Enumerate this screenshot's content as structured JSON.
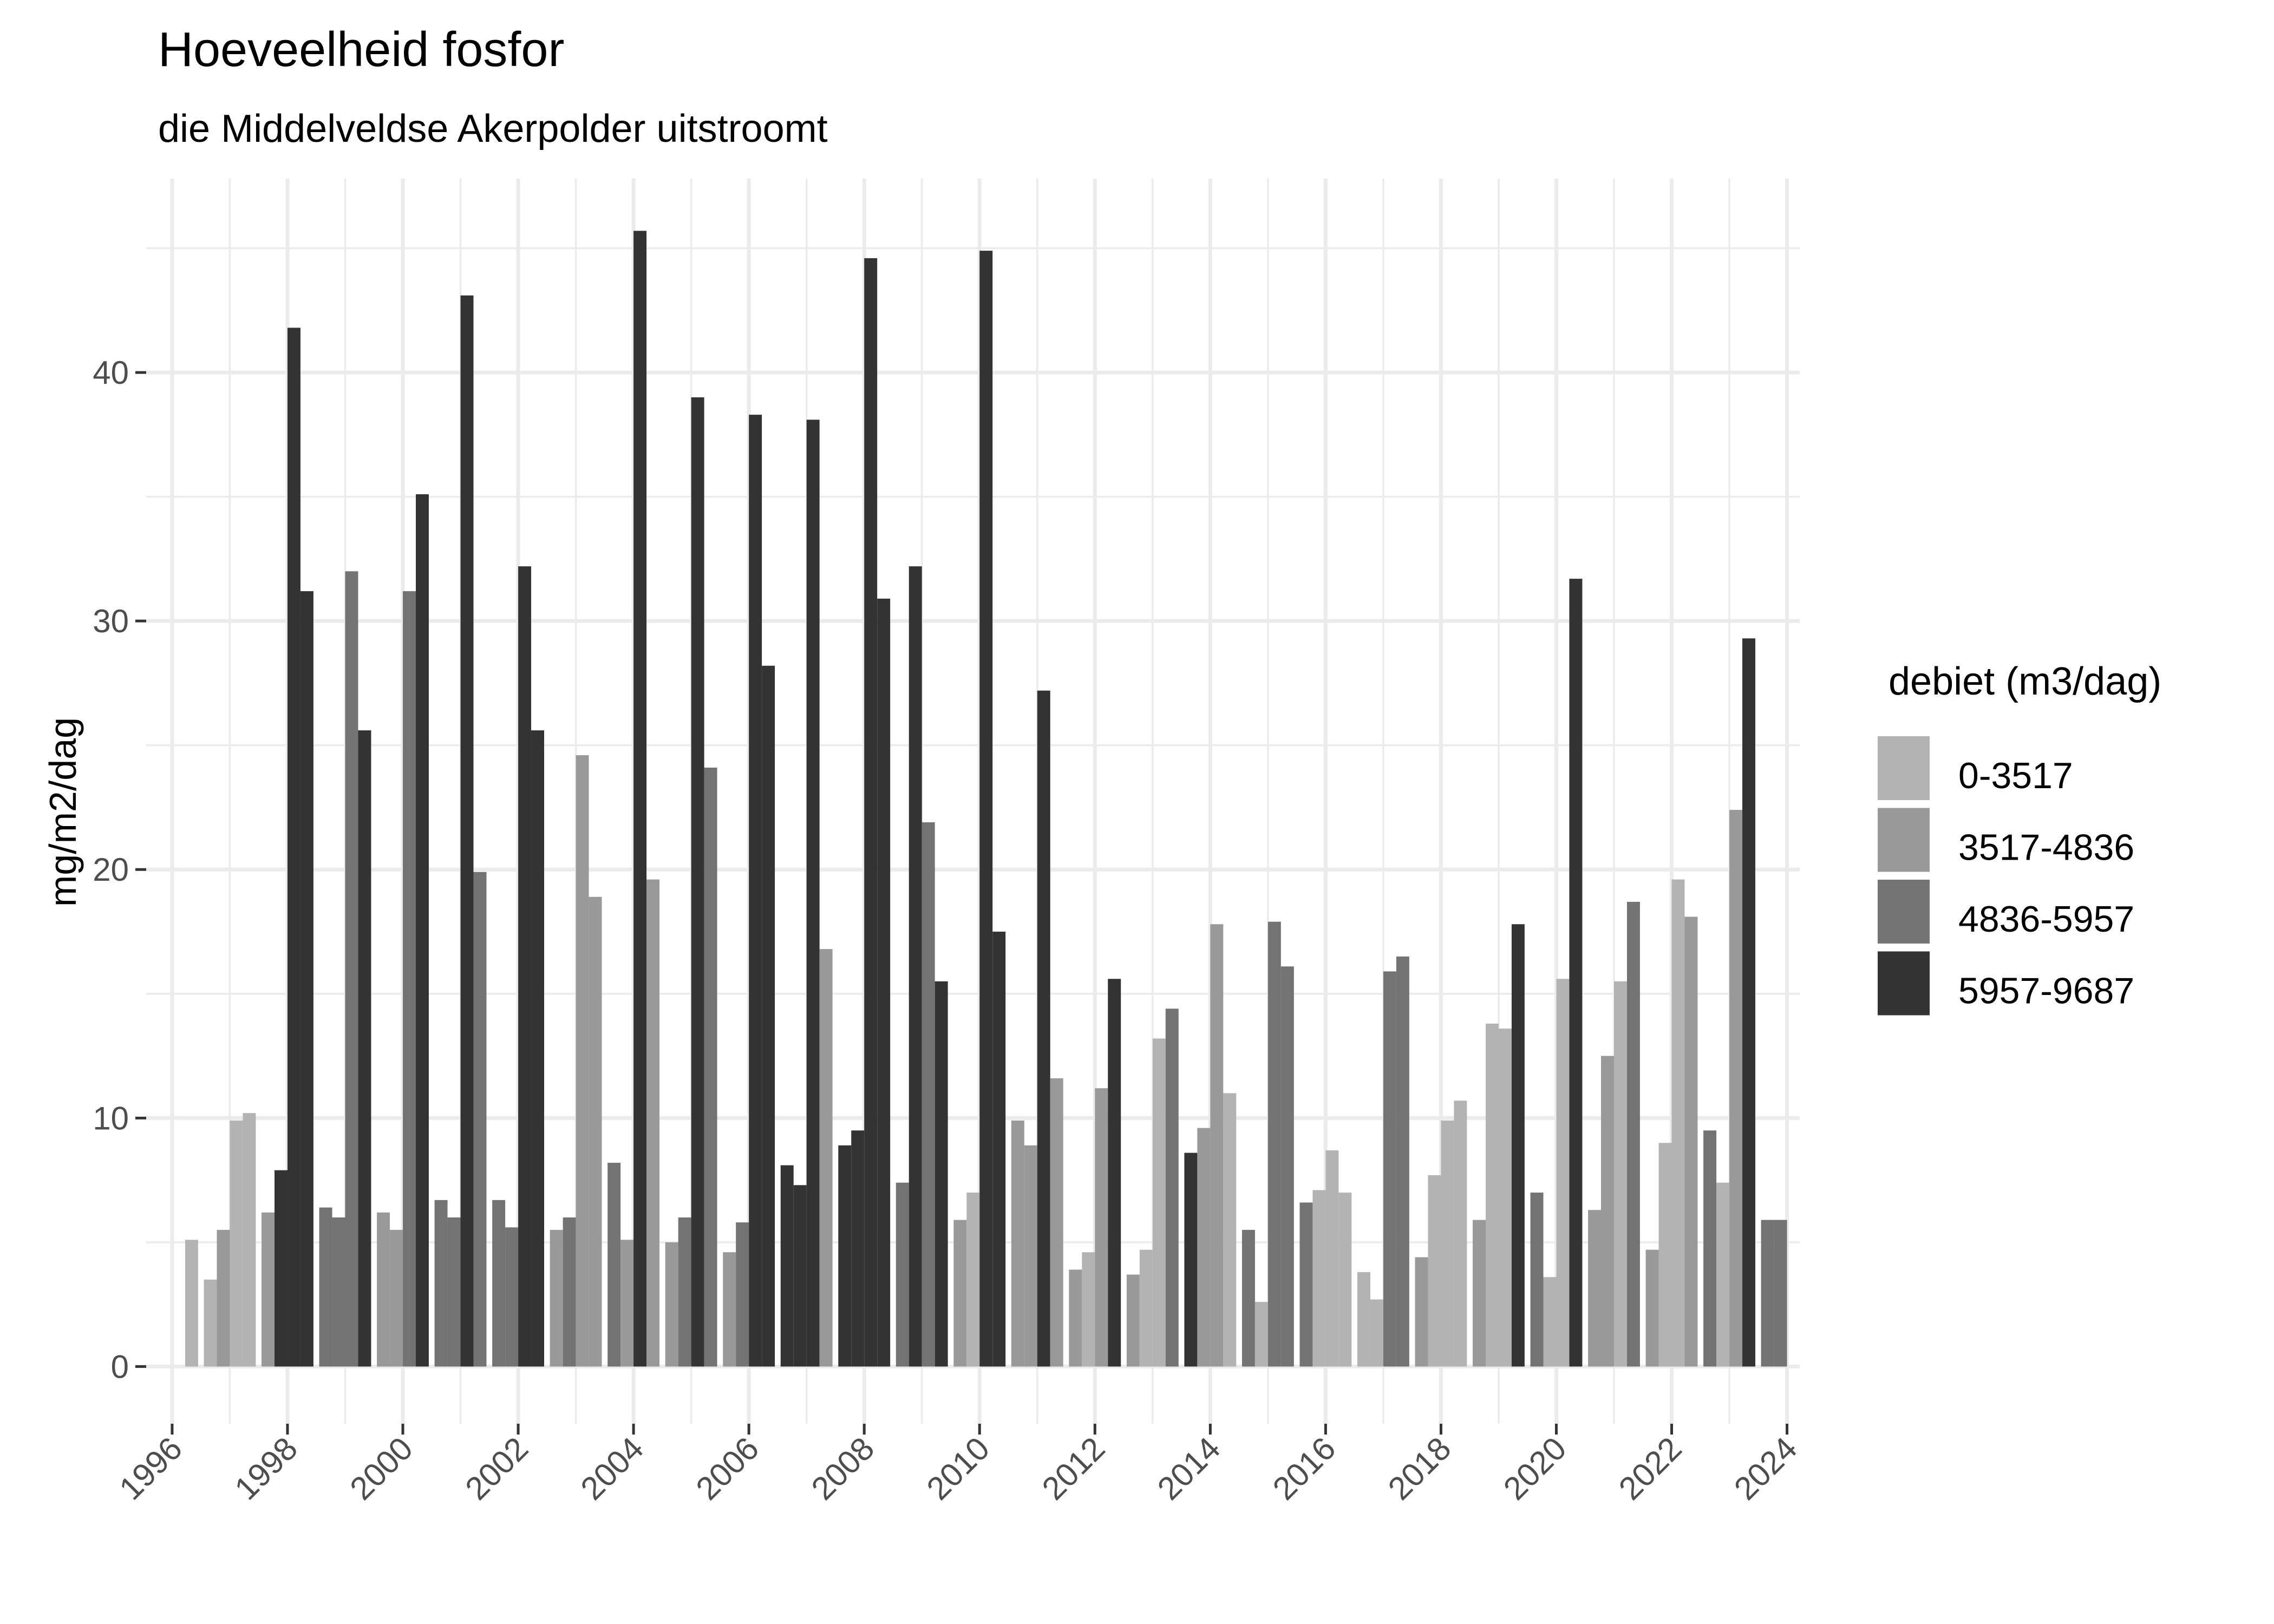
{
  "chart_data": {
    "type": "bar",
    "title": "Hoeveelheid fosfor",
    "subtitle": "die Middelveldse Akerpolder uitstroomt",
    "xlabel": "",
    "ylabel": "mg/m2/dag",
    "xlim": [
      1995.55,
      2024.22
    ],
    "ylim": [
      -2.3,
      47.8
    ],
    "x_ticks": [
      1996,
      1998,
      2000,
      2002,
      2004,
      2006,
      2008,
      2010,
      2012,
      2014,
      2016,
      2018,
      2020,
      2022,
      2024
    ],
    "y_ticks": [
      0,
      10,
      20,
      30,
      40
    ],
    "grid": true,
    "legend": {
      "title": "debiet (m3/dag)",
      "placement": "right",
      "entries": [
        {
          "label": "0-3517",
          "color": "#b3b3b3"
        },
        {
          "label": "3517-4836",
          "color": "#999999"
        },
        {
          "label": "4836-5957",
          "color": "#737373"
        },
        {
          "label": "5957-9687",
          "color": "#333333"
        }
      ]
    },
    "bars": [
      {
        "x": 1996,
        "q": 4,
        "y": 5.1,
        "c": 0
      },
      {
        "x": 1997,
        "q": 1,
        "y": 3.5,
        "c": 0
      },
      {
        "x": 1997,
        "q": 2,
        "y": 5.5,
        "c": 1
      },
      {
        "x": 1997,
        "q": 3,
        "y": 9.9,
        "c": 0
      },
      {
        "x": 1997,
        "q": 4,
        "y": 10.2,
        "c": 0
      },
      {
        "x": 1998,
        "q": 1,
        "y": 6.2,
        "c": 1
      },
      {
        "x": 1998,
        "q": 2,
        "y": 7.9,
        "c": 3
      },
      {
        "x": 1998,
        "q": 3,
        "y": 41.8,
        "c": 3
      },
      {
        "x": 1998,
        "q": 4,
        "y": 31.2,
        "c": 3
      },
      {
        "x": 1999,
        "q": 1,
        "y": 6.4,
        "c": 2
      },
      {
        "x": 1999,
        "q": 2,
        "y": 6.0,
        "c": 2
      },
      {
        "x": 1999,
        "q": 3,
        "y": 32.0,
        "c": 2
      },
      {
        "x": 1999,
        "q": 4,
        "y": 25.6,
        "c": 3
      },
      {
        "x": 2000,
        "q": 1,
        "y": 6.2,
        "c": 1
      },
      {
        "x": 2000,
        "q": 2,
        "y": 5.5,
        "c": 1
      },
      {
        "x": 2000,
        "q": 3,
        "y": 31.2,
        "c": 2
      },
      {
        "x": 2000,
        "q": 4,
        "y": 35.1,
        "c": 3
      },
      {
        "x": 2001,
        "q": 1,
        "y": 6.7,
        "c": 2
      },
      {
        "x": 2001,
        "q": 2,
        "y": 6.0,
        "c": 2
      },
      {
        "x": 2001,
        "q": 3,
        "y": 43.1,
        "c": 3
      },
      {
        "x": 2001,
        "q": 4,
        "y": 19.9,
        "c": 2
      },
      {
        "x": 2002,
        "q": 1,
        "y": 6.7,
        "c": 2
      },
      {
        "x": 2002,
        "q": 2,
        "y": 5.6,
        "c": 2
      },
      {
        "x": 2002,
        "q": 3,
        "y": 32.2,
        "c": 3
      },
      {
        "x": 2002,
        "q": 4,
        "y": 25.6,
        "c": 3
      },
      {
        "x": 2003,
        "q": 1,
        "y": 5.5,
        "c": 1
      },
      {
        "x": 2003,
        "q": 2,
        "y": 6.0,
        "c": 2
      },
      {
        "x": 2003,
        "q": 3,
        "y": 24.6,
        "c": 1
      },
      {
        "x": 2003,
        "q": 4,
        "y": 18.9,
        "c": 1
      },
      {
        "x": 2004,
        "q": 1,
        "y": 8.2,
        "c": 2
      },
      {
        "x": 2004,
        "q": 2,
        "y": 5.1,
        "c": 1
      },
      {
        "x": 2004,
        "q": 3,
        "y": 45.7,
        "c": 3
      },
      {
        "x": 2004,
        "q": 4,
        "y": 19.6,
        "c": 1
      },
      {
        "x": 2005,
        "q": 1,
        "y": 5.0,
        "c": 1
      },
      {
        "x": 2005,
        "q": 2,
        "y": 6.0,
        "c": 2
      },
      {
        "x": 2005,
        "q": 3,
        "y": 39.0,
        "c": 3
      },
      {
        "x": 2005,
        "q": 4,
        "y": 24.1,
        "c": 2
      },
      {
        "x": 2006,
        "q": 1,
        "y": 4.6,
        "c": 1
      },
      {
        "x": 2006,
        "q": 2,
        "y": 5.8,
        "c": 2
      },
      {
        "x": 2006,
        "q": 3,
        "y": 38.3,
        "c": 3
      },
      {
        "x": 2006,
        "q": 4,
        "y": 28.2,
        "c": 3
      },
      {
        "x": 2007,
        "q": 1,
        "y": 8.1,
        "c": 3
      },
      {
        "x": 2007,
        "q": 2,
        "y": 7.3,
        "c": 3
      },
      {
        "x": 2007,
        "q": 3,
        "y": 38.1,
        "c": 3
      },
      {
        "x": 2007,
        "q": 4,
        "y": 16.8,
        "c": 1
      },
      {
        "x": 2008,
        "q": 1,
        "y": 8.9,
        "c": 3
      },
      {
        "x": 2008,
        "q": 2,
        "y": 9.5,
        "c": 3
      },
      {
        "x": 2008,
        "q": 3,
        "y": 44.6,
        "c": 3
      },
      {
        "x": 2008,
        "q": 4,
        "y": 30.9,
        "c": 3
      },
      {
        "x": 2009,
        "q": 1,
        "y": 7.4,
        "c": 2
      },
      {
        "x": 2009,
        "q": 2,
        "y": 32.2,
        "c": 3
      },
      {
        "x": 2009,
        "q": 3,
        "y": 21.9,
        "c": 2
      },
      {
        "x": 2009,
        "q": 4,
        "y": 15.5,
        "c": 3
      },
      {
        "x": 2010,
        "q": 1,
        "y": 5.9,
        "c": 1
      },
      {
        "x": 2010,
        "q": 2,
        "y": 7.0,
        "c": 0
      },
      {
        "x": 2010,
        "q": 3,
        "y": 44.9,
        "c": 3
      },
      {
        "x": 2010,
        "q": 4,
        "y": 17.5,
        "c": 3
      },
      {
        "x": 2011,
        "q": 1,
        "y": 9.9,
        "c": 1
      },
      {
        "x": 2011,
        "q": 2,
        "y": 8.9,
        "c": 1
      },
      {
        "x": 2011,
        "q": 3,
        "y": 27.2,
        "c": 3
      },
      {
        "x": 2011,
        "q": 4,
        "y": 11.6,
        "c": 1
      },
      {
        "x": 2012,
        "q": 1,
        "y": 3.9,
        "c": 1
      },
      {
        "x": 2012,
        "q": 2,
        "y": 4.6,
        "c": 0
      },
      {
        "x": 2012,
        "q": 3,
        "y": 11.2,
        "c": 1
      },
      {
        "x": 2012,
        "q": 4,
        "y": 15.6,
        "c": 3
      },
      {
        "x": 2013,
        "q": 1,
        "y": 3.7,
        "c": 1
      },
      {
        "x": 2013,
        "q": 2,
        "y": 4.7,
        "c": 0
      },
      {
        "x": 2013,
        "q": 3,
        "y": 13.2,
        "c": 0
      },
      {
        "x": 2013,
        "q": 4,
        "y": 14.4,
        "c": 2
      },
      {
        "x": 2014,
        "q": 1,
        "y": 8.6,
        "c": 3
      },
      {
        "x": 2014,
        "q": 2,
        "y": 9.6,
        "c": 1
      },
      {
        "x": 2014,
        "q": 3,
        "y": 17.8,
        "c": 1
      },
      {
        "x": 2014,
        "q": 4,
        "y": 11.0,
        "c": 0
      },
      {
        "x": 2015,
        "q": 1,
        "y": 5.5,
        "c": 2
      },
      {
        "x": 2015,
        "q": 2,
        "y": 2.6,
        "c": 0
      },
      {
        "x": 2015,
        "q": 3,
        "y": 17.9,
        "c": 2
      },
      {
        "x": 2015,
        "q": 4,
        "y": 16.1,
        "c": 2
      },
      {
        "x": 2016,
        "q": 1,
        "y": 6.6,
        "c": 2
      },
      {
        "x": 2016,
        "q": 2,
        "y": 7.1,
        "c": 0
      },
      {
        "x": 2016,
        "q": 3,
        "y": 8.7,
        "c": 0
      },
      {
        "x": 2016,
        "q": 4,
        "y": 7.0,
        "c": 0
      },
      {
        "x": 2017,
        "q": 1,
        "y": 3.8,
        "c": 0
      },
      {
        "x": 2017,
        "q": 2,
        "y": 2.7,
        "c": 0
      },
      {
        "x": 2017,
        "q": 3,
        "y": 15.9,
        "c": 2
      },
      {
        "x": 2017,
        "q": 4,
        "y": 16.5,
        "c": 2
      },
      {
        "x": 2018,
        "q": 1,
        "y": 4.4,
        "c": 1
      },
      {
        "x": 2018,
        "q": 2,
        "y": 7.7,
        "c": 0
      },
      {
        "x": 2018,
        "q": 3,
        "y": 9.9,
        "c": 0
      },
      {
        "x": 2018,
        "q": 4,
        "y": 10.7,
        "c": 0
      },
      {
        "x": 2019,
        "q": 1,
        "y": 5.9,
        "c": 1
      },
      {
        "x": 2019,
        "q": 2,
        "y": 13.8,
        "c": 0
      },
      {
        "x": 2019,
        "q": 3,
        "y": 13.6,
        "c": 0
      },
      {
        "x": 2019,
        "q": 4,
        "y": 17.8,
        "c": 3
      },
      {
        "x": 2020,
        "q": 1,
        "y": 7.0,
        "c": 2
      },
      {
        "x": 2020,
        "q": 2,
        "y": 3.6,
        "c": 0
      },
      {
        "x": 2020,
        "q": 3,
        "y": 15.6,
        "c": 0
      },
      {
        "x": 2020,
        "q": 4,
        "y": 31.7,
        "c": 3
      },
      {
        "x": 2021,
        "q": 1,
        "y": 6.3,
        "c": 1
      },
      {
        "x": 2021,
        "q": 2,
        "y": 12.5,
        "c": 1
      },
      {
        "x": 2021,
        "q": 3,
        "y": 15.5,
        "c": 0
      },
      {
        "x": 2021,
        "q": 4,
        "y": 18.7,
        "c": 2
      },
      {
        "x": 2022,
        "q": 1,
        "y": 4.7,
        "c": 1
      },
      {
        "x": 2022,
        "q": 2,
        "y": 9.0,
        "c": 0
      },
      {
        "x": 2022,
        "q": 3,
        "y": 19.6,
        "c": 0
      },
      {
        "x": 2022,
        "q": 4,
        "y": 18.1,
        "c": 1
      },
      {
        "x": 2023,
        "q": 1,
        "y": 9.5,
        "c": 2
      },
      {
        "x": 2023,
        "q": 2,
        "y": 7.4,
        "c": 0
      },
      {
        "x": 2023,
        "q": 3,
        "y": 22.4,
        "c": 1
      },
      {
        "x": 2023,
        "q": 4,
        "y": 29.3,
        "c": 3
      },
      {
        "x": 2024,
        "q": 1,
        "y": 5.9,
        "c": 2
      },
      {
        "x": 2024,
        "q": 2,
        "y": 5.9,
        "c": 2
      }
    ]
  }
}
